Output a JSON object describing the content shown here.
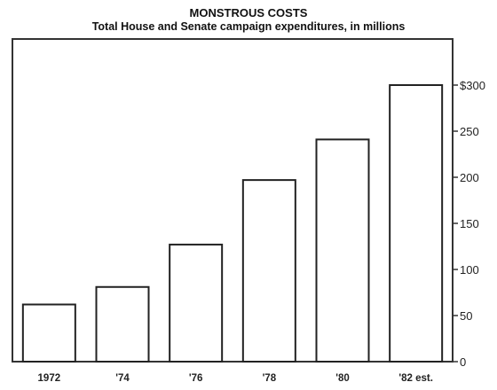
{
  "chart_data": {
    "type": "bar",
    "title": "MONSTROUS COSTS",
    "subtitle": "Total House and Senate campaign expenditures, in millions",
    "categories": [
      "1972",
      "'74",
      "'76",
      "'78",
      "'80",
      "'82 est."
    ],
    "values": [
      62,
      81,
      127,
      197,
      241,
      300
    ],
    "ylim": [
      0,
      350
    ],
    "yticks": [
      0,
      50,
      100,
      150,
      200,
      250,
      300
    ],
    "ytick_labels": [
      "0",
      "50",
      "100",
      "150",
      "200",
      "250",
      "$300"
    ],
    "y_axis_side": "right",
    "grid": false,
    "colors": {
      "bar_fill": "#ffffff",
      "bar_stroke": "#222222",
      "axis": "#333333"
    }
  }
}
